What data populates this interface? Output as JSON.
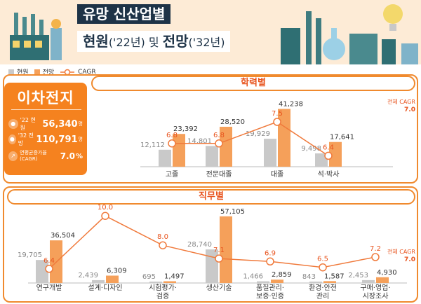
{
  "header": {
    "title_line1": "유망 신산업별",
    "title_line2_a": "현원",
    "title_line2_b": "('22년)",
    "title_line2_c": " 및 ",
    "title_line2_d": "전망",
    "title_line2_e": "('32년)"
  },
  "legend": {
    "items": [
      "현원",
      "전망",
      "CAGR"
    ],
    "colors": {
      "current": "#c9c9c9",
      "forecast": "#f5a05a",
      "cagr": "#f07a3c"
    }
  },
  "card": {
    "name": "이차전지",
    "rows": [
      {
        "label": "'22 현원",
        "value": "56,340",
        "unit": "명"
      },
      {
        "label": "'32 전망",
        "value": "110,791",
        "unit": "명"
      },
      {
        "label": "연평균증가율 (CAGR)",
        "value": "7.0",
        "unit": "%"
      }
    ]
  },
  "total_cagr": {
    "label": "전체 CAGR",
    "value": "7.0"
  },
  "chart_data": [
    {
      "type": "bar",
      "title": "학력별",
      "categories": [
        "고졸",
        "전문대졸",
        "대졸",
        "석·박사"
      ],
      "series": [
        {
          "name": "현원",
          "values": [
            12112,
            14801,
            19929,
            9498
          ]
        },
        {
          "name": "전망",
          "values": [
            23392,
            28520,
            41238,
            17641
          ]
        }
      ],
      "value_labels": {
        "current": [
          "12,112",
          "14,801",
          "19,929",
          "9,498"
        ],
        "forecast": [
          "23,392",
          "28,520",
          "41,238",
          "17,641"
        ]
      },
      "cagr": {
        "name": "CAGR",
        "values": [
          6.8,
          6.8,
          7.5,
          6.4
        ],
        "labels": [
          "6.8",
          "6.8",
          "7.5",
          "6.4"
        ]
      },
      "total_cagr": 7.0
    },
    {
      "type": "bar",
      "title": "직무별",
      "categories": [
        "연구개발",
        "설계·디자인",
        "시험평가·\n검증",
        "생산기술",
        "품질관리·\n보증·인증",
        "환경·안전\n관리",
        "구매·영업·\n시장조사"
      ],
      "series": [
        {
          "name": "현원",
          "values": [
            19705,
            2439,
            695,
            28740,
            1466,
            843,
            2453
          ]
        },
        {
          "name": "전망",
          "values": [
            36504,
            6309,
            1497,
            57105,
            2859,
            1587,
            4930
          ]
        }
      ],
      "value_labels": {
        "current": [
          "19,705",
          "2,439",
          "695",
          "28,740",
          "1,466",
          "843",
          "2,453"
        ],
        "forecast": [
          "36,504",
          "6,309",
          "1,497",
          "57,105",
          "2,859",
          "1,587",
          "4,930"
        ]
      },
      "cagr": {
        "name": "CAGR",
        "values": [
          6.4,
          10.0,
          8.0,
          7.1,
          6.9,
          6.5,
          7.2
        ],
        "labels": [
          "6.4",
          "10.0",
          "8.0",
          "7.1",
          "6.9",
          "6.5",
          "7.2"
        ]
      },
      "total_cagr": 7.0
    }
  ]
}
